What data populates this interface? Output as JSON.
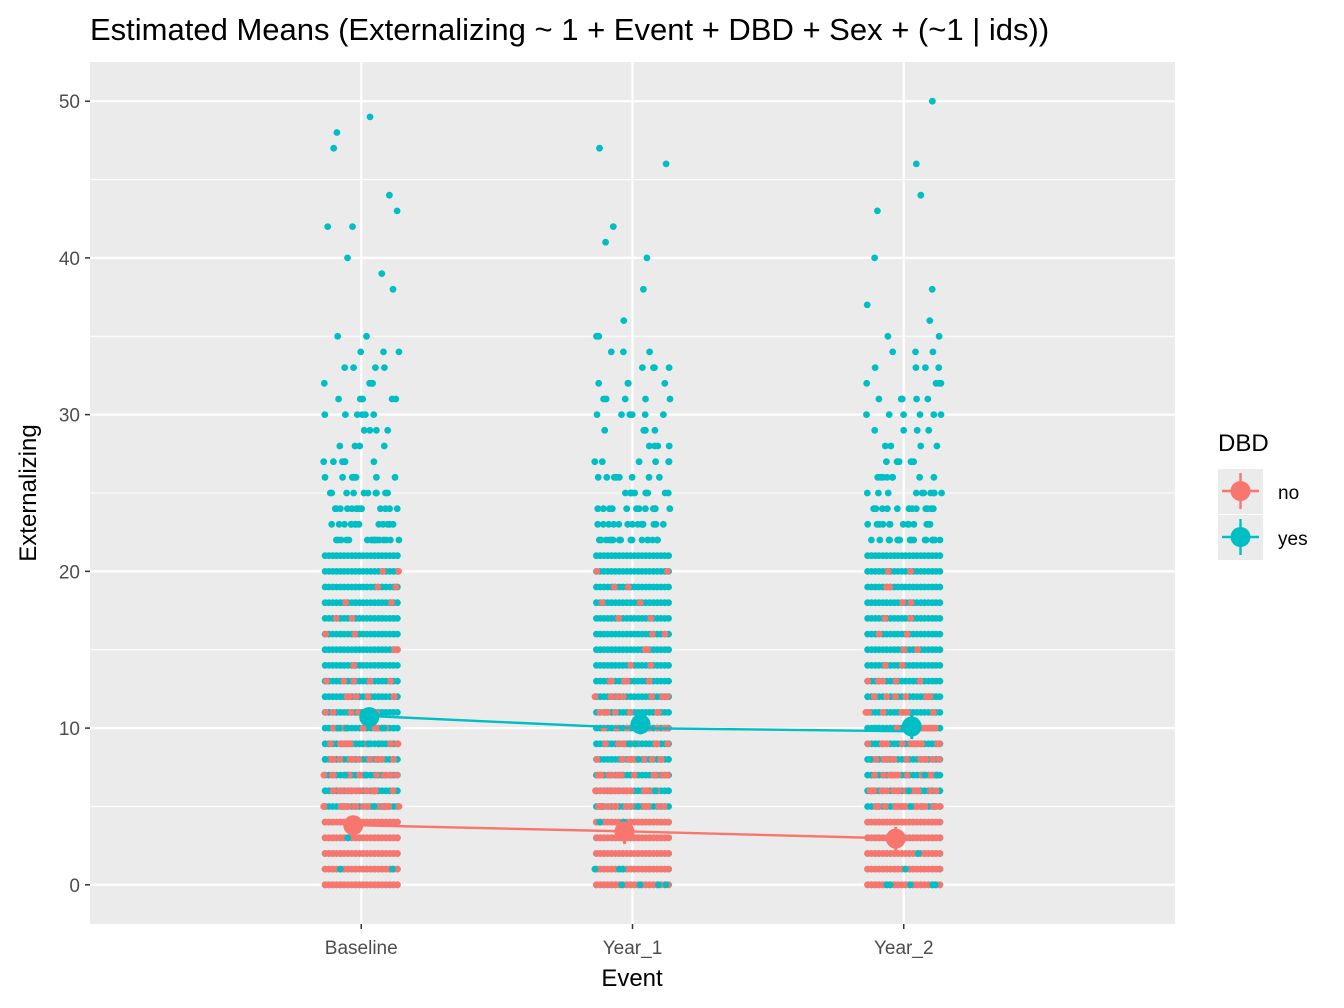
{
  "chart_data": {
    "type": "scatter",
    "title": "Estimated Means (Externalizing ~ 1 + Event + DBD + Sex + (~1 | ids))",
    "xlabel": "Event",
    "ylabel": "Externalizing",
    "categories": [
      "Baseline",
      "Year_1",
      "Year_2"
    ],
    "ylim": [
      -2.5,
      52.5
    ],
    "yticks": [
      0,
      10,
      20,
      30,
      40,
      50
    ],
    "grid": true,
    "legend": {
      "title": "DBD",
      "placement": "right",
      "entries": [
        {
          "label": "no",
          "color": "#F8766D"
        },
        {
          "label": "yes",
          "color": "#00BFC4"
        }
      ]
    },
    "series": [
      {
        "name": "no",
        "color": "#F8766D",
        "estimated_means": [
          3.8,
          3.4,
          2.95
        ],
        "ci_low": [
          3.0,
          2.6,
          2.2
        ],
        "ci_high": [
          4.4,
          4.0,
          3.7
        ],
        "fit_line": [
          3.8,
          3.4,
          2.95
        ],
        "raw_range": [
          0,
          20
        ],
        "dense_max": 13
      },
      {
        "name": "yes",
        "color": "#00BFC4",
        "estimated_means": [
          10.7,
          10.25,
          10.1
        ],
        "ci_low": [
          10.2,
          9.6,
          9.3
        ],
        "ci_high": [
          11.3,
          10.9,
          10.9
        ],
        "fit_line": [
          10.8,
          10.0,
          9.8
        ],
        "raw_range": [
          0,
          50
        ],
        "dense_max": 21,
        "outliers": [
          [
            [
              47,
              42,
              48,
              44,
              49,
              43,
              42,
              40,
              39,
              38
            ],
            [
              0,
              0,
              0,
              1,
              1,
              1,
              0,
              0,
              1,
              1
            ]
          ],
          [
            [
              47,
              42,
              46,
              41,
              40,
              38,
              36
            ],
            [
              0,
              0,
              1,
              0,
              1,
              1,
              0
            ]
          ],
          [
            [
              43,
              50,
              40,
              46,
              44,
              38,
              37,
              36
            ],
            [
              0,
              1,
              0,
              1,
              1,
              1,
              0,
              1
            ]
          ]
        ]
      }
    ]
  }
}
